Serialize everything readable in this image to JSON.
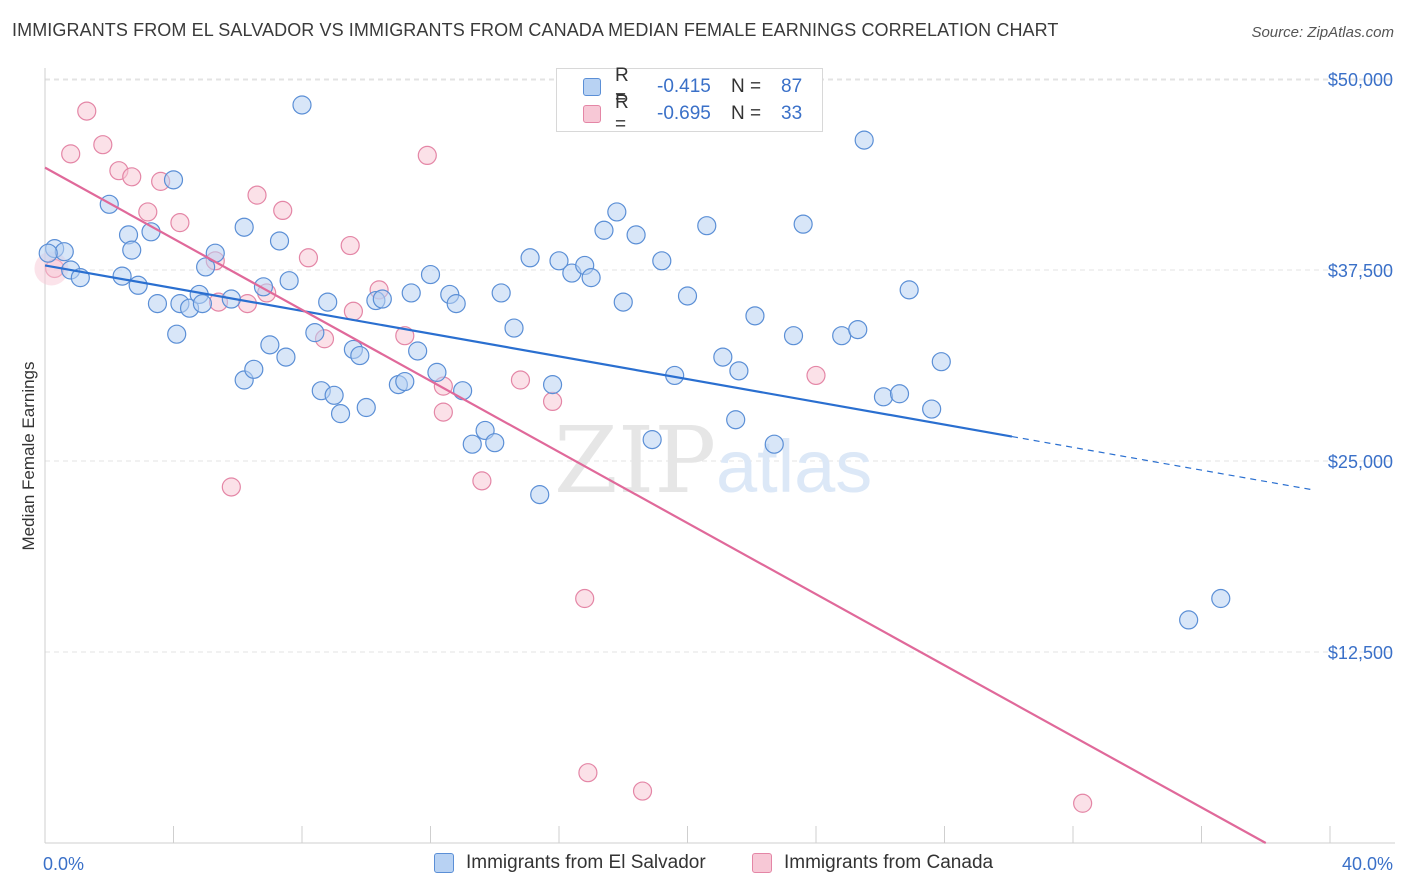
{
  "title": "IMMIGRANTS FROM EL SALVADOR VS IMMIGRANTS FROM CANADA MEDIAN FEMALE EARNINGS CORRELATION CHART",
  "source": "Source: ZipAtlas.com",
  "watermark": {
    "zip": "ZIP",
    "atlas": "atlas"
  },
  "colors": {
    "blue_fill": "#b8d2f3",
    "blue_stroke": "#5b8fd6",
    "blue_line": "#2a6fd0",
    "pink_fill": "#f7c8d6",
    "pink_stroke": "#e486a6",
    "pink_line": "#e0699a",
    "axis_text": "#3a70c8",
    "grid": "#e3e3e3"
  },
  "legend": {
    "r_label": "R =",
    "n_label": "N =",
    "series": [
      {
        "r": "-0.415",
        "n": "87"
      },
      {
        "r": "-0.695",
        "n": "33"
      }
    ]
  },
  "chart_data": {
    "type": "scatter",
    "title": "IMMIGRANTS FROM EL SALVADOR VS IMMIGRANTS FROM CANADA MEDIAN FEMALE EARNINGS CORRELATION CHART",
    "xlabel": "",
    "ylabel": "Median Female Earnings",
    "xlim": [
      0,
      40
    ],
    "ylim": [
      0,
      52000
    ],
    "x_tick_labels": [
      "0.0%",
      "40.0%"
    ],
    "y_ticks": [
      12500,
      25000,
      37500,
      50000
    ],
    "y_tick_labels": [
      "$12,500",
      "$25,000",
      "$37,500",
      "$50,000"
    ],
    "grid": true,
    "legend_position": "bottom",
    "series": [
      {
        "name": "Immigrants from El Salvador",
        "trend": {
          "x": [
            0,
            30.1,
            39.5
          ],
          "y": [
            37800,
            26600,
            23100
          ],
          "solid_until": 30.1
        },
        "points": [
          [
            0.3,
            38900
          ],
          [
            0.6,
            38700
          ],
          [
            0.8,
            37500
          ],
          [
            1.1,
            37000
          ],
          [
            2.0,
            41800
          ],
          [
            2.4,
            37100
          ],
          [
            2.6,
            39800
          ],
          [
            2.7,
            38800
          ],
          [
            2.9,
            36500
          ],
          [
            3.3,
            40000
          ],
          [
            3.5,
            35300
          ],
          [
            4.0,
            43400
          ],
          [
            4.1,
            33300
          ],
          [
            4.2,
            35300
          ],
          [
            4.5,
            35000
          ],
          [
            4.8,
            35900
          ],
          [
            4.9,
            35300
          ],
          [
            5.0,
            37700
          ],
          [
            5.3,
            38600
          ],
          [
            5.8,
            35600
          ],
          [
            6.2,
            40300
          ],
          [
            6.2,
            30300
          ],
          [
            6.5,
            31000
          ],
          [
            6.8,
            36400
          ],
          [
            7.0,
            32600
          ],
          [
            7.3,
            39400
          ],
          [
            7.5,
            31800
          ],
          [
            7.6,
            36800
          ],
          [
            8.0,
            48300
          ],
          [
            8.4,
            33400
          ],
          [
            8.6,
            29600
          ],
          [
            8.8,
            35400
          ],
          [
            9.0,
            29300
          ],
          [
            9.2,
            28100
          ],
          [
            9.6,
            32300
          ],
          [
            9.8,
            31900
          ],
          [
            10.0,
            28500
          ],
          [
            10.3,
            35500
          ],
          [
            10.5,
            35600
          ],
          [
            11.0,
            30000
          ],
          [
            11.2,
            30200
          ],
          [
            11.4,
            36000
          ],
          [
            11.6,
            32200
          ],
          [
            12.0,
            37200
          ],
          [
            12.2,
            30800
          ],
          [
            12.6,
            35900
          ],
          [
            12.8,
            35300
          ],
          [
            13.0,
            29600
          ],
          [
            13.3,
            26100
          ],
          [
            13.7,
            27000
          ],
          [
            14.0,
            26200
          ],
          [
            14.2,
            36000
          ],
          [
            14.6,
            33700
          ],
          [
            15.1,
            38300
          ],
          [
            15.4,
            22800
          ],
          [
            15.8,
            30000
          ],
          [
            16.0,
            38100
          ],
          [
            16.4,
            37300
          ],
          [
            16.8,
            37800
          ],
          [
            17.0,
            37000
          ],
          [
            17.4,
            40100
          ],
          [
            17.8,
            41300
          ],
          [
            18.0,
            35400
          ],
          [
            18.4,
            39800
          ],
          [
            18.9,
            26400
          ],
          [
            19.2,
            38100
          ],
          [
            19.6,
            30600
          ],
          [
            20.0,
            35800
          ],
          [
            20.6,
            40400
          ],
          [
            21.1,
            31800
          ],
          [
            21.5,
            27700
          ],
          [
            21.6,
            30900
          ],
          [
            22.1,
            34500
          ],
          [
            22.7,
            26100
          ],
          [
            23.3,
            33200
          ],
          [
            23.6,
            40500
          ],
          [
            24.8,
            33200
          ],
          [
            25.3,
            33600
          ],
          [
            25.5,
            46000
          ],
          [
            26.1,
            29200
          ],
          [
            26.6,
            29400
          ],
          [
            26.9,
            36200
          ],
          [
            27.6,
            28400
          ],
          [
            27.9,
            31500
          ],
          [
            35.6,
            14600
          ],
          [
            36.6,
            16000
          ],
          [
            0.1,
            38600
          ]
        ]
      },
      {
        "name": "Immigrants from Canada",
        "trend": {
          "x": [
            0,
            38.0
          ],
          "y": [
            44200,
            0
          ]
        },
        "points": [
          [
            0.3,
            37600
          ],
          [
            1.3,
            47900
          ],
          [
            0.8,
            45100
          ],
          [
            1.8,
            45700
          ],
          [
            2.3,
            44000
          ],
          [
            2.7,
            43600
          ],
          [
            3.2,
            41300
          ],
          [
            3.6,
            43300
          ],
          [
            4.2,
            40600
          ],
          [
            5.3,
            38100
          ],
          [
            5.4,
            35400
          ],
          [
            5.8,
            23300
          ],
          [
            6.3,
            35300
          ],
          [
            6.6,
            42400
          ],
          [
            6.9,
            36000
          ],
          [
            7.4,
            41400
          ],
          [
            8.2,
            38300
          ],
          [
            8.7,
            33000
          ],
          [
            9.5,
            39100
          ],
          [
            9.6,
            34800
          ],
          [
            10.4,
            36200
          ],
          [
            11.2,
            33200
          ],
          [
            11.9,
            45000
          ],
          [
            12.4,
            28200
          ],
          [
            12.4,
            29900
          ],
          [
            13.6,
            23700
          ],
          [
            14.8,
            30300
          ],
          [
            15.8,
            28900
          ],
          [
            16.8,
            16000
          ],
          [
            16.9,
            4600
          ],
          [
            18.6,
            3400
          ],
          [
            24.0,
            30600
          ],
          [
            32.3,
            2600
          ]
        ]
      }
    ]
  }
}
